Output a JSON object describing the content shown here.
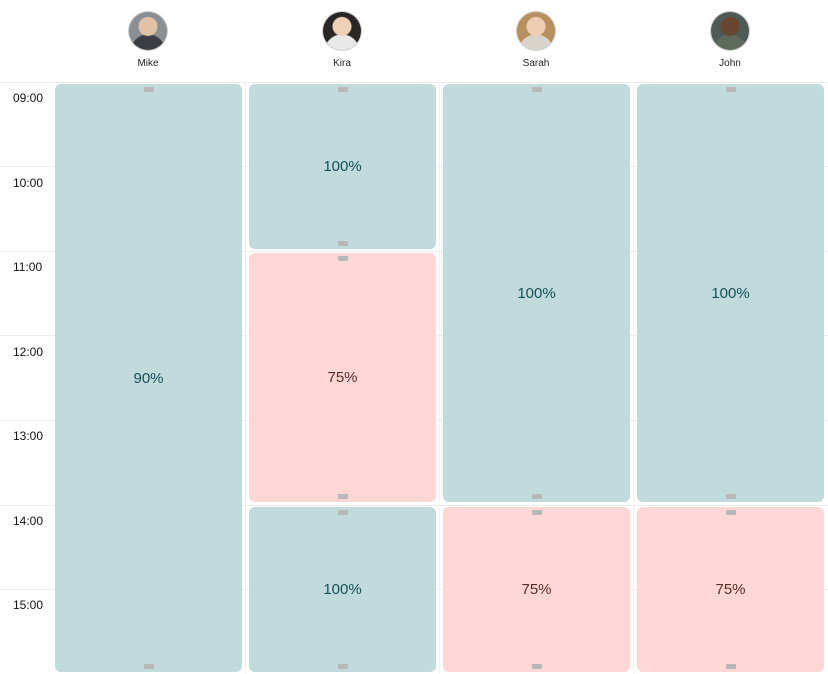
{
  "people": [
    {
      "name": "Mike",
      "avatar_icon": "avatar-mike"
    },
    {
      "name": "Kira",
      "avatar_icon": "avatar-kira"
    },
    {
      "name": "Sarah",
      "avatar_icon": "avatar-sarah"
    },
    {
      "name": "John",
      "avatar_icon": "avatar-john"
    }
  ],
  "time_slots": [
    "09:00",
    "10:00",
    "11:00",
    "12:00",
    "13:00",
    "14:00",
    "15:00"
  ],
  "blocks": {
    "mike_1": {
      "label": "90%",
      "status": "teal"
    },
    "kira_1": {
      "label": "100%",
      "status": "teal"
    },
    "kira_2": {
      "label": "75%",
      "status": "pink"
    },
    "kira_3": {
      "label": "100%",
      "status": "teal"
    },
    "sarah_1": {
      "label": "100%",
      "status": "teal"
    },
    "sarah_2": {
      "label": "75%",
      "status": "pink"
    },
    "john_1": {
      "label": "100%",
      "status": "teal"
    },
    "john_2": {
      "label": "75%",
      "status": "pink"
    }
  },
  "colors": {
    "teal": "#c1dbdc",
    "pink": "#ffd8d6",
    "teal_text": "#145057",
    "pink_text": "#5a2a26"
  }
}
